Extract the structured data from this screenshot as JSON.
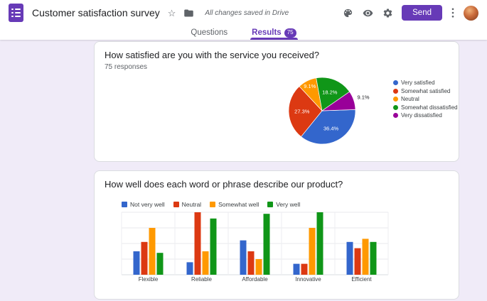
{
  "accent_color": "#673ab7",
  "header": {
    "title": "Customer satisfaction survey",
    "saved_status": "All changes saved in Drive",
    "send_label": "Send"
  },
  "icons": {
    "star": "☆"
  },
  "tabs": {
    "questions": "Questions",
    "results": "Results",
    "results_badge": "75"
  },
  "cards": [
    {
      "question": "How satisfied are you with the service you received?",
      "responses_label": "75 responses"
    },
    {
      "question": "How well does each word or phrase describe our product?"
    }
  ],
  "chart_data": [
    {
      "type": "pie",
      "title": "How satisfied are you with the service you received?",
      "labels": [
        "Very satisfied",
        "Somewhat satisfied",
        "Neutral",
        "Somewhat dissatisfied",
        "Very dissatisfied"
      ],
      "values": [
        36.4,
        27.3,
        9.1,
        18.2,
        9.1
      ],
      "value_labels": [
        "36.4%",
        "27.3%",
        "9.1%",
        "18.2%",
        "9.1%"
      ],
      "colors": [
        "#3366cc",
        "#dc3912",
        "#ff9900",
        "#109618",
        "#990099"
      ],
      "start_angle_deg": 88,
      "label_inside": [
        true,
        true,
        true,
        true,
        false
      ],
      "legend_position": "right"
    },
    {
      "type": "bar",
      "title": "How well does each word or phrase describe our product?",
      "categories": [
        "Flexible",
        "Reliable",
        "Affordable",
        "Innovative",
        "Efficient"
      ],
      "series": [
        {
          "name": "Not very well",
          "color": "#3366cc",
          "values": [
            15,
            8,
            22,
            7,
            21
          ]
        },
        {
          "name": "Neutral",
          "color": "#dc3912",
          "values": [
            21,
            40,
            15,
            7,
            17
          ]
        },
        {
          "name": "Somewhat well",
          "color": "#ff9900",
          "values": [
            30,
            15,
            10,
            30,
            23
          ]
        },
        {
          "name": "Very well",
          "color": "#109618",
          "values": [
            14,
            36,
            39,
            40,
            21
          ]
        }
      ],
      "ylim": [
        0,
        40
      ],
      "grid": true,
      "legend_position": "top"
    }
  ]
}
